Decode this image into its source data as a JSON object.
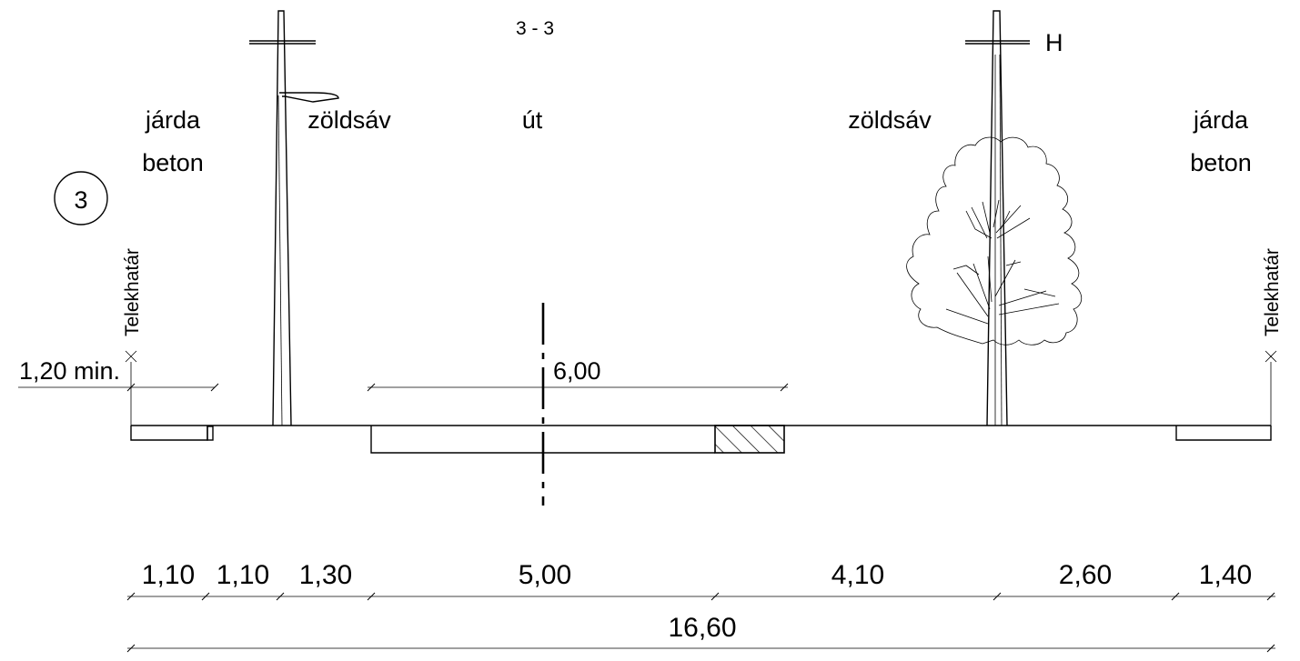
{
  "section_title": "3 - 3",
  "section_marker": "3",
  "labels": {
    "left_walk_1": "járda",
    "left_walk_2": "beton",
    "left_green": "zöldsáv",
    "road": "út",
    "right_green": "zöldsáv",
    "right_walk_1": "járda",
    "right_walk_2": "beton",
    "pole_label": "H",
    "boundary_left": "Telekhatár",
    "boundary_right": "Telekhatár"
  },
  "dimensions": {
    "min_offset": "1,20 min.",
    "road_width": "6,00",
    "total": "16,60",
    "segments": [
      {
        "value": "1,10"
      },
      {
        "value": "1,10"
      },
      {
        "value": "1,30"
      },
      {
        "value": "5,00"
      },
      {
        "value": "4,10"
      },
      {
        "value": "2,60"
      },
      {
        "value": "1,40"
      }
    ]
  },
  "colors": {
    "line": "#000000",
    "background": "#ffffff"
  }
}
